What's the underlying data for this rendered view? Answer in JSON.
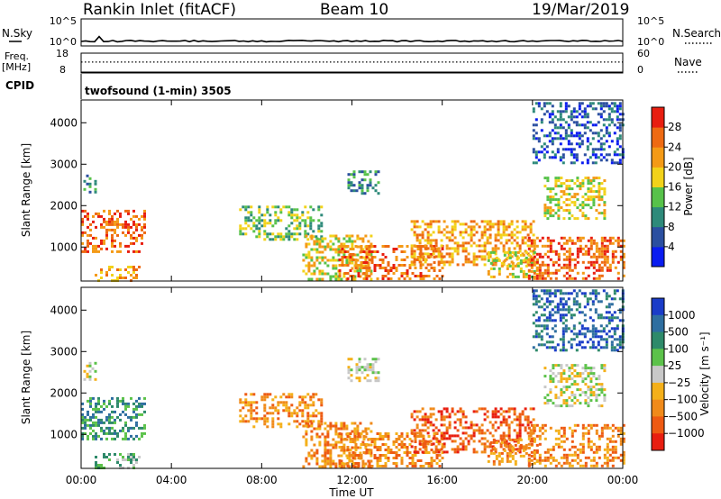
{
  "header": {
    "station": "Rankin Inlet (fitACF)",
    "beam": "Beam 10",
    "date": "19/Mar/2019"
  },
  "chart_data": [
    {
      "type": "line",
      "panel": "noise",
      "left_label": "N.Sky",
      "right_label": "N.Search",
      "left_ticks": [
        "10^5",
        "10^0"
      ],
      "right_ticks": [
        "10^5",
        "10^0"
      ],
      "series": [
        {
          "name": "N.Sky",
          "style": "solid",
          "level": 0.18
        },
        {
          "name": "N.Search",
          "style": "dotted",
          "level": 0.18
        }
      ]
    },
    {
      "type": "line",
      "panel": "frequency",
      "left_label_lines": [
        "Freq.",
        "[MHz]"
      ],
      "right_label": "Nave",
      "left_ticks": [
        "18",
        "8"
      ],
      "left_range": [
        8,
        18
      ],
      "right_ticks": [
        "60",
        "0"
      ],
      "right_range": [
        0,
        60
      ],
      "series": [
        {
          "name": "Freq.",
          "style": "solid",
          "value": 8.3
        },
        {
          "name": "Nave",
          "style": "dotted",
          "value": 33
        }
      ]
    },
    {
      "type": "table",
      "panel": "cpid",
      "label": "CPID",
      "text": "twofsound (1-min) 3505"
    },
    {
      "type": "heatmap",
      "panel": "power",
      "ylabel": "Slant Range [km]",
      "ylim": [
        180,
        4550
      ],
      "yticks": [
        "1000",
        "2000",
        "3000",
        "4000"
      ],
      "xlim_hours": [
        0,
        24
      ],
      "colorbar": {
        "label": "Power [dB]",
        "ticks": [
          "4",
          "8",
          "12",
          "16",
          "20",
          "24",
          "28"
        ],
        "colors": [
          "#0a1cf0",
          "#2b4fa0",
          "#2e8a7a",
          "#57c24a",
          "#f2d21a",
          "#f49a16",
          "#ee6a12",
          "#e81e10"
        ]
      },
      "regions": [
        {
          "t0": 0.0,
          "t1": 2.8,
          "r0": 900,
          "r1": 1900,
          "level": 6
        },
        {
          "t0": 0.1,
          "t1": 0.6,
          "r0": 2350,
          "r1": 2750,
          "level": 2
        },
        {
          "t0": 0.6,
          "t1": 2.6,
          "r0": 220,
          "r1": 550,
          "level": 5
        },
        {
          "t0": 7.0,
          "t1": 10.6,
          "r0": 1200,
          "r1": 2000,
          "level": 3
        },
        {
          "t0": 9.8,
          "t1": 12.8,
          "r0": 250,
          "r1": 1300,
          "level": 4
        },
        {
          "t0": 11.4,
          "t1": 16.0,
          "r0": 260,
          "r1": 1050,
          "level": 6
        },
        {
          "t0": 11.8,
          "t1": 13.2,
          "r0": 2300,
          "r1": 2850,
          "level": 2
        },
        {
          "t0": 14.6,
          "t1": 20.0,
          "r0": 600,
          "r1": 1650,
          "level": 5
        },
        {
          "t0": 18.0,
          "t1": 20.2,
          "r0": 250,
          "r1": 900,
          "level": 4
        },
        {
          "t0": 19.8,
          "t1": 24.0,
          "r0": 250,
          "r1": 1250,
          "level": 6
        },
        {
          "t0": 20.5,
          "t1": 23.2,
          "r0": 1700,
          "r1": 2700,
          "level": 4
        },
        {
          "t0": 20.0,
          "t1": 24.0,
          "r0": 3000,
          "r1": 4500,
          "level": 1
        }
      ]
    },
    {
      "type": "heatmap",
      "panel": "velocity",
      "ylabel": "Slant Range [km]",
      "ylim": [
        180,
        4550
      ],
      "yticks": [
        "1000",
        "2000",
        "3000",
        "4000"
      ],
      "xlabel": "Time UT",
      "xticks": [
        "00:00",
        "04:00",
        "08:00",
        "12:00",
        "16:00",
        "20:00",
        "00:00"
      ],
      "xlim_hours": [
        0,
        24
      ],
      "colorbar": {
        "label": "Velocity [m s⁻¹]",
        "ticks": [
          "1000",
          "500",
          "100",
          "25",
          "−25",
          "−100",
          "−500",
          "−1000"
        ],
        "colors": [
          "#1a3cc8",
          "#2e6ea0",
          "#2e8a6a",
          "#5cc24a",
          "#c8c8c8",
          "#f4b01a",
          "#f08a1a",
          "#ee5a12",
          "#e81e10"
        ]
      },
      "regions": [
        {
          "t0": 0.0,
          "t1": 2.8,
          "r0": 900,
          "r1": 1900,
          "level": 2
        },
        {
          "t0": 0.1,
          "t1": 0.6,
          "r0": 2350,
          "r1": 2750,
          "level": 4
        },
        {
          "t0": 0.6,
          "t1": 2.6,
          "r0": 220,
          "r1": 550,
          "level": 3
        },
        {
          "t0": 7.0,
          "t1": 10.6,
          "r0": 1200,
          "r1": 2000,
          "level": 6
        },
        {
          "t0": 9.8,
          "t1": 12.8,
          "r0": 250,
          "r1": 1300,
          "level": 6
        },
        {
          "t0": 11.4,
          "t1": 16.0,
          "r0": 260,
          "r1": 1050,
          "level": 6
        },
        {
          "t0": 11.8,
          "t1": 13.2,
          "r0": 2300,
          "r1": 2850,
          "level": 4
        },
        {
          "t0": 14.6,
          "t1": 20.0,
          "r0": 600,
          "r1": 1650,
          "level": 7
        },
        {
          "t0": 18.0,
          "t1": 20.2,
          "r0": 250,
          "r1": 900,
          "level": 6
        },
        {
          "t0": 19.8,
          "t1": 24.0,
          "r0": 250,
          "r1": 1250,
          "level": 6
        },
        {
          "t0": 20.5,
          "t1": 23.2,
          "r0": 1700,
          "r1": 2700,
          "level": 4
        },
        {
          "t0": 20.0,
          "t1": 24.0,
          "r0": 3000,
          "r1": 4500,
          "level": 1
        }
      ]
    }
  ]
}
